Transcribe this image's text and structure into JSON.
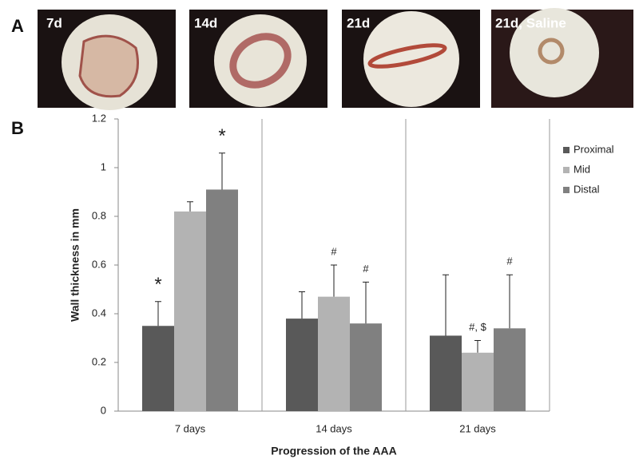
{
  "panels": {
    "a": {
      "label": "A",
      "images": [
        "7d",
        "14d",
        "21d",
        "21d, Saline"
      ]
    },
    "b": {
      "label": "B"
    }
  },
  "chart_data": {
    "type": "bar",
    "y_label": "Wall thickness in mm",
    "x_label": "Progression of the AAA",
    "categories": [
      "7 days",
      "14 days",
      "21 days"
    ],
    "series": [
      {
        "name": "Proximal",
        "color": "#595959",
        "values": [
          0.35,
          0.38,
          0.31
        ],
        "errors": [
          0.1,
          0.11,
          0.25
        ],
        "annotations": [
          "*",
          null,
          null
        ]
      },
      {
        "name": "Mid",
        "color": "#b3b3b3",
        "values": [
          0.82,
          0.47,
          0.24
        ],
        "errors": [
          0.04,
          0.13,
          0.05
        ],
        "annotations": [
          null,
          "#",
          "#, $"
        ]
      },
      {
        "name": "Distal",
        "color": "#808080",
        "values": [
          0.91,
          0.36,
          0.34
        ],
        "errors": [
          0.15,
          0.17,
          0.22
        ],
        "annotations": [
          "*",
          "#",
          "#"
        ]
      }
    ],
    "ylim": [
      0,
      1.2
    ],
    "yticks": [
      0,
      0.2,
      0.4,
      0.6,
      0.8,
      1,
      1.2
    ],
    "legend": "right"
  }
}
